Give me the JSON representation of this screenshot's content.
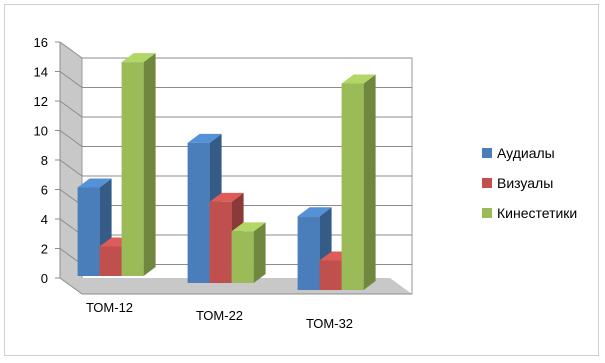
{
  "chart_data": {
    "type": "bar",
    "title": "",
    "xlabel": "",
    "ylabel": "",
    "categories": [
      "ТОМ-12",
      "ТОМ-22",
      "ТОМ-32"
    ],
    "ylim": [
      0,
      16
    ],
    "yticks": [
      0,
      2,
      4,
      6,
      8,
      10,
      12,
      14,
      16
    ],
    "grid": true,
    "legend_position": "right",
    "three_d": true,
    "series": [
      {
        "name": "Аудиалы",
        "values": [
          6,
          9.5,
          5
        ],
        "color": "#4a7ebb"
      },
      {
        "name": "Визуалы",
        "values": [
          2,
          5.5,
          2
        ],
        "color": "#c0504d"
      },
      {
        "name": "Кинестетики",
        "values": [
          14.5,
          3.5,
          14
        ],
        "color": "#9bbb59"
      }
    ]
  }
}
